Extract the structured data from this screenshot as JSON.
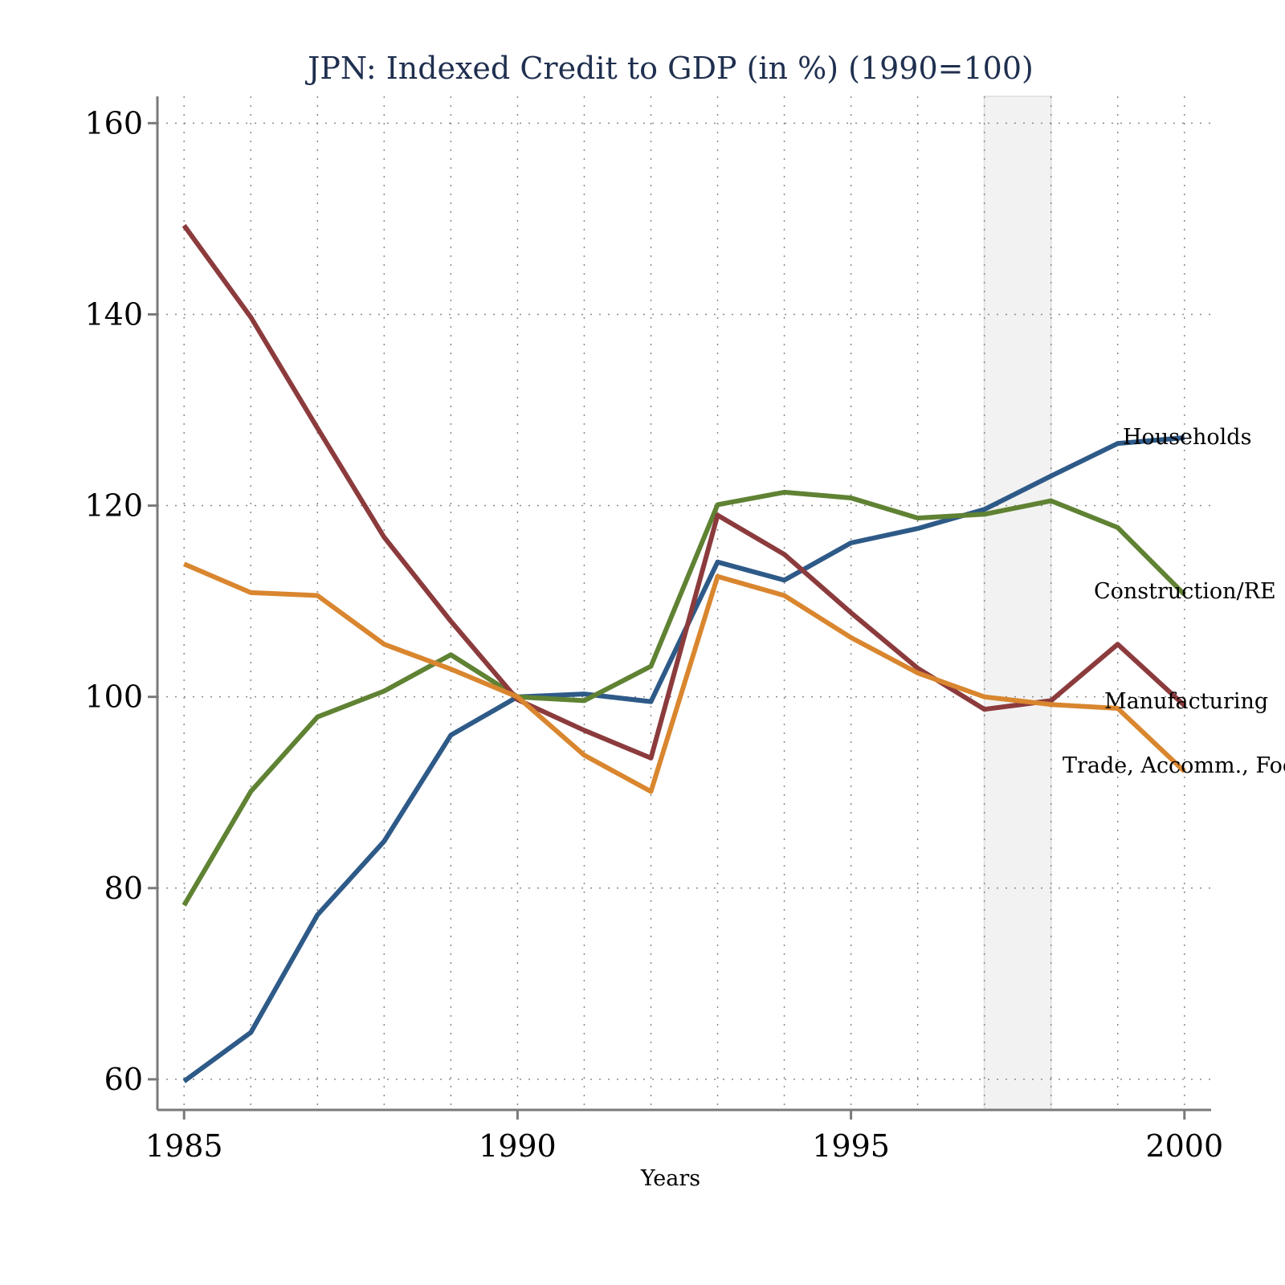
{
  "chart_data": {
    "type": "line",
    "title": "JPN: Indexed Credit to GDP (in %) (1990=100)",
    "xlabel": "Years",
    "ylabel": "",
    "x": [
      1985,
      1986,
      1987,
      1988,
      1989,
      1990,
      1991,
      1992,
      1993,
      1994,
      1995,
      1996,
      1997,
      1998,
      1999,
      2000
    ],
    "xlim": [
      1984.6,
      2000.4
    ],
    "ylim": [
      56.8,
      162.8
    ],
    "xticks": [
      "1985",
      "1990",
      "1995",
      "2000"
    ],
    "yticks": [
      "60",
      "80",
      "100",
      "120",
      "140",
      "160"
    ],
    "grid": true,
    "legend": "labels at line ends",
    "shaded_period": [
      1997,
      1998
    ],
    "series": [
      {
        "name": "Households",
        "color": "#2e5a88",
        "values": [
          59.8,
          64.9,
          77.2,
          84.9,
          96.0,
          100.0,
          100.3,
          99.5,
          114.1,
          112.2,
          116.1,
          117.6,
          119.6,
          123.1,
          126.5,
          127.1
        ]
      },
      {
        "name": "Construction/RE",
        "color": "#5f8233",
        "values": [
          78.2,
          90.1,
          97.9,
          100.6,
          104.4,
          100.0,
          99.6,
          103.2,
          120.1,
          121.4,
          120.8,
          118.7,
          119.1,
          120.5,
          117.7,
          110.7
        ]
      },
      {
        "name": "Manufacturing",
        "color": "#8c3b3d",
        "values": [
          149.3,
          139.7,
          128.1,
          116.7,
          107.9,
          99.7,
          96.5,
          93.6,
          119.0,
          114.9,
          108.8,
          103.0,
          98.7,
          99.6,
          105.5,
          99.1
        ]
      },
      {
        "name": "Trade, Accomm., Food",
        "color": "#d9862f",
        "values": [
          113.9,
          110.9,
          110.6,
          105.5,
          102.9,
          100.0,
          93.9,
          90.1,
          112.6,
          110.6,
          106.2,
          102.5,
          100.0,
          99.2,
          98.8,
          92.2
        ]
      }
    ]
  }
}
